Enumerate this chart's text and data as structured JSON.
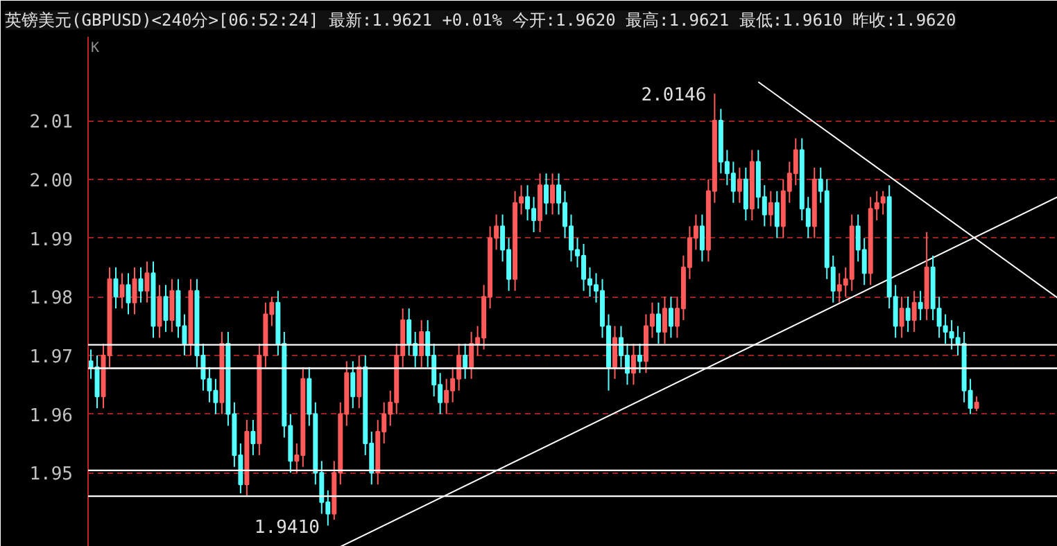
{
  "chart_data": {
    "type": "candlestick",
    "title": "英镑美元(GBPUSD)<240分>[06:52:24] 最新:1.9621 +0.01% 今开:1.9620 最高:1.9621 最低:1.9610 昨收:1.9620",
    "annotations": [
      "K",
      "2.0146",
      "1.9410"
    ],
    "categories": [
      null,
      null,
      null,
      null,
      null,
      null,
      null,
      null,
      null,
      null,
      null,
      null,
      null,
      null,
      null,
      null,
      null,
      null,
      null,
      null,
      null,
      null,
      null,
      null,
      null,
      null,
      null,
      null,
      null,
      null,
      null,
      null,
      null,
      null,
      null,
      null,
      null,
      null,
      null,
      null,
      null,
      null,
      null,
      null,
      null,
      null,
      null,
      null,
      null,
      null,
      null,
      null,
      null,
      null,
      null,
      null,
      null,
      null,
      null,
      null,
      null,
      null,
      null,
      null,
      null,
      null,
      null,
      null,
      null,
      null,
      null,
      null,
      null,
      null,
      null,
      null,
      null,
      null,
      null,
      null,
      null,
      null,
      null,
      null,
      null,
      null,
      null,
      null,
      null,
      null,
      null,
      null,
      null,
      null,
      null,
      null,
      null,
      null,
      null,
      null,
      null,
      null,
      null,
      null,
      null,
      null,
      null,
      null,
      null,
      null,
      null,
      null,
      null,
      null,
      null,
      null,
      null,
      null,
      null,
      null,
      null,
      null,
      null,
      null,
      null,
      null,
      null,
      null,
      null,
      null,
      null,
      null,
      null,
      null,
      null,
      null,
      null,
      null,
      null,
      null,
      null,
      null,
      null,
      null,
      null,
      null,
      null,
      null,
      null,
      null,
      null,
      null,
      null,
      null,
      null,
      null
    ],
    "ohlc": [
      [
        1.969,
        1.971,
        1.966,
        1.968
      ],
      [
        1.968,
        1.97,
        1.961,
        1.963
      ],
      [
        1.963,
        1.972,
        1.961,
        1.97
      ],
      [
        1.97,
        1.985,
        1.968,
        1.983
      ],
      [
        1.983,
        1.985,
        1.978,
        1.98
      ],
      [
        1.98,
        1.984,
        1.978,
        1.982
      ],
      [
        1.982,
        1.984,
        1.977,
        1.979
      ],
      [
        1.979,
        1.985,
        1.977,
        1.983
      ],
      [
        1.983,
        1.985,
        1.979,
        1.981
      ],
      [
        1.981,
        1.986,
        1.979,
        1.984
      ],
      [
        1.984,
        1.986,
        1.973,
        1.975
      ],
      [
        1.975,
        1.982,
        1.973,
        1.98
      ],
      [
        1.98,
        1.982,
        1.974,
        1.976
      ],
      [
        1.976,
        1.983,
        1.974,
        1.981
      ],
      [
        1.981,
        1.983,
        1.973,
        1.975
      ],
      [
        1.975,
        1.977,
        1.97,
        1.972
      ],
      [
        1.972,
        1.983,
        1.97,
        1.981
      ],
      [
        1.981,
        1.983,
        1.968,
        1.97
      ],
      [
        1.97,
        1.972,
        1.964,
        1.966
      ],
      [
        1.966,
        1.968,
        1.962,
        1.964
      ],
      [
        1.964,
        1.966,
        1.96,
        1.962
      ],
      [
        1.962,
        1.974,
        1.96,
        1.972
      ],
      [
        1.972,
        1.974,
        1.958,
        1.96
      ],
      [
        1.96,
        1.962,
        1.951,
        1.953
      ],
      [
        1.953,
        1.955,
        1.9465,
        1.948
      ],
      [
        1.948,
        1.959,
        1.946,
        1.957
      ],
      [
        1.957,
        1.959,
        1.953,
        1.955
      ],
      [
        1.955,
        1.972,
        1.953,
        1.97
      ],
      [
        1.97,
        1.979,
        1.968,
        1.977
      ],
      [
        1.977,
        1.98,
        1.975,
        1.979
      ],
      [
        1.979,
        1.981,
        1.97,
        1.972
      ],
      [
        1.972,
        1.974,
        1.956,
        1.958
      ],
      [
        1.958,
        1.96,
        1.95,
        1.952
      ],
      [
        1.952,
        1.955,
        1.95,
        1.953
      ],
      [
        1.953,
        1.968,
        1.951,
        1.966
      ],
      [
        1.966,
        1.968,
        1.958,
        1.96
      ],
      [
        1.96,
        1.962,
        1.948,
        1.95
      ],
      [
        1.95,
        1.952,
        1.943,
        1.945
      ],
      [
        1.945,
        1.947,
        1.941,
        1.943
      ],
      [
        1.943,
        1.952,
        1.942,
        1.95
      ],
      [
        1.95,
        1.962,
        1.948,
        1.96
      ],
      [
        1.96,
        1.969,
        1.958,
        1.967
      ],
      [
        1.967,
        1.969,
        1.961,
        1.963
      ],
      [
        1.963,
        1.97,
        1.961,
        1.968
      ],
      [
        1.968,
        1.97,
        1.953,
        1.955
      ],
      [
        1.955,
        1.957,
        1.948,
        1.95
      ],
      [
        1.95,
        1.959,
        1.948,
        1.957
      ],
      [
        1.957,
        1.962,
        1.955,
        1.96
      ],
      [
        1.96,
        1.964,
        1.958,
        1.962
      ],
      [
        1.962,
        1.972,
        1.96,
        1.97
      ],
      [
        1.97,
        1.978,
        1.968,
        1.976
      ],
      [
        1.976,
        1.978,
        1.97,
        1.972
      ],
      [
        1.972,
        1.974,
        1.968,
        1.97
      ],
      [
        1.97,
        1.976,
        1.968,
        1.974
      ],
      [
        1.974,
        1.976,
        1.968,
        1.97
      ],
      [
        1.97,
        1.972,
        1.963,
        1.965
      ],
      [
        1.965,
        1.967,
        1.96,
        1.962
      ],
      [
        1.962,
        1.966,
        1.96,
        1.964
      ],
      [
        1.964,
        1.968,
        1.962,
        1.966
      ],
      [
        1.966,
        1.972,
        1.964,
        1.97
      ],
      [
        1.97,
        1.972,
        1.966,
        1.968
      ],
      [
        1.968,
        1.974,
        1.966,
        1.972
      ],
      [
        1.972,
        1.975,
        1.97,
        1.973
      ],
      [
        1.973,
        1.982,
        1.971,
        1.98
      ],
      [
        1.98,
        1.992,
        1.978,
        1.99
      ],
      [
        1.99,
        1.994,
        1.988,
        1.992
      ],
      [
        1.992,
        1.994,
        1.986,
        1.988
      ],
      [
        1.988,
        1.99,
        1.981,
        1.983
      ],
      [
        1.983,
        1.998,
        1.981,
        1.996
      ],
      [
        1.996,
        1.999,
        1.994,
        1.997
      ],
      [
        1.997,
        1.999,
        1.993,
        1.995
      ],
      [
        1.995,
        1.997,
        1.991,
        1.993
      ],
      [
        1.993,
        2.001,
        1.991,
        1.999
      ],
      [
        1.999,
        2.001,
        1.994,
        1.996
      ],
      [
        1.996,
        2.001,
        1.994,
        1.999
      ],
      [
        1.999,
        2.001,
        1.994,
        1.996
      ],
      [
        1.996,
        1.998,
        1.99,
        1.992
      ],
      [
        1.992,
        1.994,
        1.986,
        1.988
      ],
      [
        1.988,
        1.99,
        1.985,
        1.987
      ],
      [
        1.987,
        1.989,
        1.981,
        1.983
      ],
      [
        1.983,
        1.985,
        1.98,
        1.982
      ],
      [
        1.982,
        1.984,
        1.979,
        1.981
      ],
      [
        1.981,
        1.983,
        1.973,
        1.975
      ],
      [
        1.975,
        1.977,
        1.964,
        1.968
      ],
      [
        1.968,
        1.975,
        1.966,
        1.973
      ],
      [
        1.973,
        1.975,
        1.968,
        1.97
      ],
      [
        1.97,
        1.972,
        1.965,
        1.967
      ],
      [
        1.967,
        1.972,
        1.965,
        1.97
      ],
      [
        1.97,
        1.972,
        1.967,
        1.969
      ],
      [
        1.969,
        1.977,
        1.967,
        1.975
      ],
      [
        1.975,
        1.979,
        1.973,
        1.977
      ],
      [
        1.977,
        1.979,
        1.972,
        1.974
      ],
      [
        1.974,
        1.98,
        1.972,
        1.978
      ],
      [
        1.978,
        1.98,
        1.973,
        1.975
      ],
      [
        1.975,
        1.98,
        1.973,
        1.978
      ],
      [
        1.978,
        1.987,
        1.976,
        1.985
      ],
      [
        1.985,
        1.992,
        1.983,
        1.99
      ],
      [
        1.99,
        1.994,
        1.988,
        1.992
      ],
      [
        1.992,
        1.994,
        1.986,
        1.988
      ],
      [
        1.988,
        2.0,
        1.986,
        1.998
      ],
      [
        1.998,
        2.0146,
        1.996,
        2.01
      ],
      [
        2.01,
        2.012,
        2.001,
        2.003
      ],
      [
        2.003,
        2.005,
        1.999,
        2.001
      ],
      [
        2.001,
        2.003,
        1.996,
        1.998
      ],
      [
        1.998,
        2.002,
        1.996,
        2.0
      ],
      [
        2.0,
        2.002,
        1.993,
        1.995
      ],
      [
        1.995,
        2.005,
        1.993,
        2.003
      ],
      [
        2.003,
        2.005,
        1.995,
        1.997
      ],
      [
        1.997,
        1.999,
        1.992,
        1.994
      ],
      [
        1.994,
        1.998,
        1.992,
        1.996
      ],
      [
        1.996,
        1.998,
        1.99,
        1.992
      ],
      [
        1.992,
        2.0,
        1.99,
        1.998
      ],
      [
        1.998,
        2.003,
        1.996,
        2.001
      ],
      [
        2.001,
        2.007,
        1.999,
        2.005
      ],
      [
        2.005,
        2.007,
        1.993,
        1.995
      ],
      [
        1.995,
        1.997,
        1.99,
        1.992
      ],
      [
        1.992,
        2.002,
        1.99,
        2.0
      ],
      [
        2.0,
        2.002,
        1.996,
        1.998
      ],
      [
        1.998,
        2.0,
        1.983,
        1.985
      ],
      [
        1.985,
        1.987,
        1.979,
        1.981
      ],
      [
        1.981,
        1.984,
        1.979,
        1.982
      ],
      [
        1.982,
        1.985,
        1.98,
        1.983
      ],
      [
        1.983,
        1.994,
        1.981,
        1.992
      ],
      [
        1.992,
        1.994,
        1.986,
        1.988
      ],
      [
        1.988,
        1.99,
        1.982,
        1.984
      ],
      [
        1.984,
        1.997,
        1.982,
        1.995
      ],
      [
        1.995,
        1.998,
        1.993,
        1.996
      ],
      [
        1.996,
        1.998,
        1.994,
        1.997
      ],
      [
        1.997,
        1.999,
        1.978,
        1.98
      ],
      [
        1.98,
        1.982,
        1.973,
        1.975
      ],
      [
        1.975,
        1.98,
        1.973,
        1.978
      ],
      [
        1.978,
        1.98,
        1.974,
        1.976
      ],
      [
        1.976,
        1.981,
        1.974,
        1.979
      ],
      [
        1.979,
        1.981,
        1.976,
        1.978
      ],
      [
        1.978,
        1.991,
        1.976,
        1.985
      ],
      [
        1.985,
        1.987,
        1.976,
        1.978
      ],
      [
        1.978,
        1.98,
        1.973,
        1.975
      ],
      [
        1.975,
        1.977,
        1.972,
        1.974
      ],
      [
        1.974,
        1.976,
        1.971,
        1.973
      ],
      [
        1.973,
        1.975,
        1.97,
        1.972
      ],
      [
        1.972,
        1.974,
        1.962,
        1.964
      ],
      [
        1.964,
        1.966,
        1.96,
        1.961
      ],
      [
        1.961,
        1.963,
        1.9605,
        1.962
      ],
      null,
      null,
      null,
      null,
      null,
      null,
      null,
      null,
      null,
      null,
      null,
      null,
      null
    ],
    "series": [
      {
        "type": "line",
        "color": "#ffffff",
        "values": [
          null,
          null,
          null,
          null,
          null,
          null,
          null,
          null,
          null,
          null,
          null,
          null,
          null,
          null,
          null,
          null,
          null,
          null,
          null,
          null,
          null,
          null,
          null,
          null,
          null,
          null,
          null,
          null,
          null,
          null,
          null,
          null,
          null,
          null,
          null,
          null,
          null,
          null,
          null,
          null,
          1.9374,
          null,
          null,
          null,
          null,
          null,
          null,
          null,
          null,
          null,
          null,
          null,
          null,
          null,
          null,
          null,
          null,
          null,
          null,
          null,
          null,
          null,
          null,
          null,
          null,
          null,
          null,
          null,
          null,
          null,
          null,
          null,
          null,
          null,
          null,
          null,
          null,
          null,
          null,
          null,
          null,
          null,
          null,
          null,
          null,
          null,
          null,
          null,
          null,
          null,
          null,
          null,
          null,
          null,
          null,
          null,
          null,
          null,
          null,
          null,
          null,
          null,
          null,
          null,
          null,
          null,
          null,
          null,
          null,
          null,
          null,
          null,
          null,
          null,
          null,
          null,
          null,
          null,
          null,
          null,
          null,
          null,
          null,
          null,
          null,
          null,
          null,
          null,
          null,
          null,
          null,
          null,
          null,
          null,
          null,
          null,
          null,
          null,
          null,
          null,
          null,
          null,
          null,
          null,
          null,
          null,
          null,
          null,
          null,
          null,
          null,
          null,
          null,
          null,
          null,
          1.997
        ]
      },
      {
        "type": "line",
        "color": "#ffffff",
        "values": [
          null,
          null,
          null,
          null,
          null,
          null,
          null,
          null,
          null,
          null,
          null,
          null,
          null,
          null,
          null,
          null,
          null,
          null,
          null,
          null,
          null,
          null,
          null,
          null,
          null,
          null,
          null,
          null,
          null,
          null,
          null,
          null,
          null,
          null,
          null,
          null,
          null,
          null,
          null,
          null,
          null,
          null,
          null,
          null,
          null,
          null,
          null,
          null,
          null,
          null,
          null,
          null,
          null,
          null,
          null,
          null,
          null,
          null,
          null,
          null,
          null,
          null,
          null,
          null,
          null,
          null,
          null,
          null,
          null,
          null,
          null,
          null,
          null,
          null,
          null,
          null,
          null,
          null,
          null,
          null,
          null,
          null,
          null,
          null,
          null,
          null,
          null,
          null,
          null,
          null,
          null,
          null,
          null,
          null,
          null,
          null,
          null,
          null,
          null,
          null,
          null,
          null,
          null,
          null,
          null,
          null,
          null,
          2.0166,
          null,
          null,
          null,
          null,
          null,
          null,
          null,
          null,
          null,
          null,
          null,
          null,
          null,
          null,
          null,
          null,
          null,
          null,
          null,
          null,
          null,
          null,
          null,
          null,
          null,
          null,
          null,
          null,
          null,
          null,
          null,
          null,
          null,
          null,
          null,
          null,
          null,
          null,
          null,
          null,
          null,
          null,
          null,
          null,
          null,
          null,
          null,
          1.9798
        ]
      }
    ],
    "ref_lines": [
      {
        "axis": "y",
        "value": 1.9718,
        "color": "#ffffff"
      },
      {
        "axis": "y",
        "value": 1.9678,
        "color": "#ffffff"
      },
      {
        "axis": "y",
        "value": 1.9504,
        "color": "#ffffff"
      },
      {
        "axis": "y",
        "value": 1.946,
        "color": "#ffffff"
      }
    ],
    "ylim": [
      1.9374,
      2.0243
    ],
    "yticks": [
      {
        "value": 1.95,
        "label": "1.95"
      },
      {
        "value": 1.96,
        "label": "1.96"
      },
      {
        "value": 1.97,
        "label": "1.97"
      },
      {
        "value": 1.98,
        "label": "1.98"
      },
      {
        "value": 1.99,
        "label": "1.99"
      },
      {
        "value": 2.0,
        "label": "2.00"
      },
      {
        "value": 2.01,
        "label": "2.01"
      }
    ],
    "grid": "y",
    "tick_labels": "y"
  }
}
